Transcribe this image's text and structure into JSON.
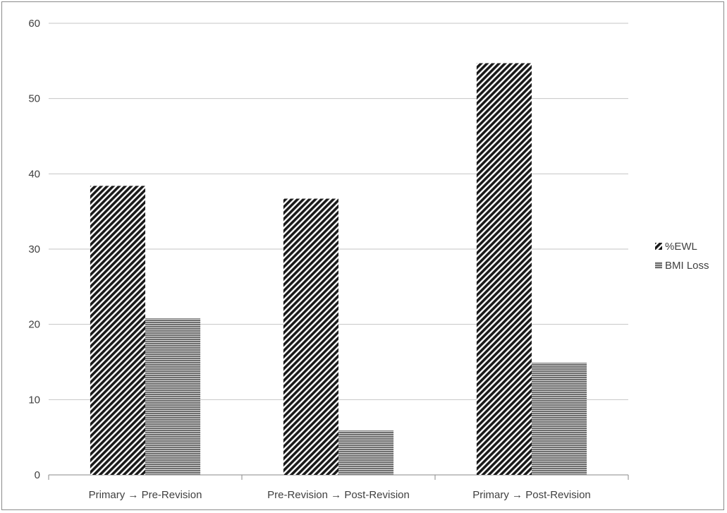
{
  "chart_data": {
    "type": "bar",
    "categories": [
      "Primary → Pre-Revision",
      "Pre-Revision → Post-Revision",
      "Primary → Post-Revision"
    ],
    "series": [
      {
        "name": "%EWL",
        "values": [
          38.4,
          36.7,
          54.7
        ],
        "pattern": "diagonal-hatch"
      },
      {
        "name": "BMI Loss",
        "values": [
          20.8,
          5.9,
          14.9
        ],
        "pattern": "horizontal-stripes"
      }
    ],
    "title": "",
    "xlabel": "",
    "ylabel": "",
    "ylim": [
      0,
      60
    ],
    "yticks": [
      0,
      10,
      20,
      30,
      40,
      50,
      60
    ],
    "grid": true,
    "legend_position": "right",
    "colors": {
      "ewl_fill": "#1a1a1a",
      "bmi_fill": "#6e6e6e",
      "grid": "#c6c6c6",
      "axis": "#8a8a8a",
      "text": "#404040"
    }
  }
}
